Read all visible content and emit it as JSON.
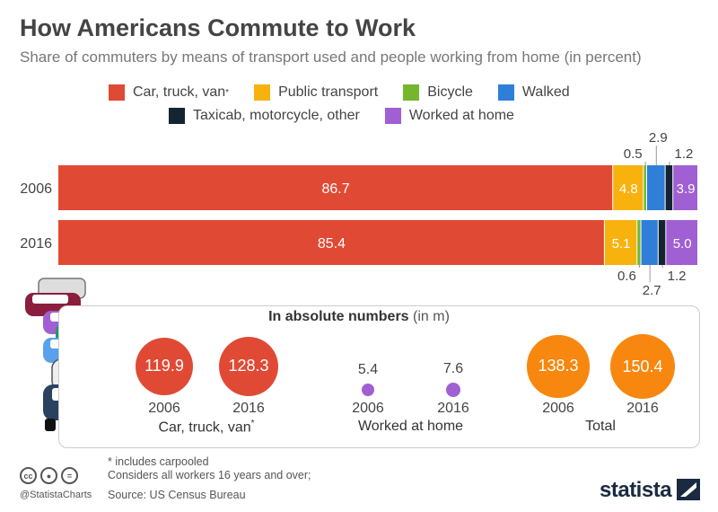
{
  "title": "How Americans Commute to Work",
  "subtitle": "Share of commuters by means of transport used and people working from home (in percent)",
  "legend": [
    {
      "label": "Car, truck, van",
      "sup": "*",
      "color": "#e04a35"
    },
    {
      "label": "Public transport",
      "sup": "",
      "color": "#f7b20e"
    },
    {
      "label": "Bicycle",
      "sup": "",
      "color": "#74b72e"
    },
    {
      "label": "Walked",
      "sup": "",
      "color": "#2f7fd8"
    },
    {
      "label": "Taxicab, motorcycle, other",
      "sup": "",
      "color": "#142433"
    },
    {
      "label": "Worked at home",
      "sup": "",
      "color": "#a05fd2"
    }
  ],
  "chart_data": [
    {
      "type": "bar",
      "orientation": "horizontal",
      "stacked": true,
      "title": "How Americans Commute to Work",
      "categories": [
        "2006",
        "2016"
      ],
      "series": [
        {
          "name": "Car, truck, van*",
          "values": [
            86.7,
            85.4
          ],
          "color": "#e04a35"
        },
        {
          "name": "Public transport",
          "values": [
            4.8,
            5.1
          ],
          "color": "#f7b20e"
        },
        {
          "name": "Bicycle",
          "values": [
            0.5,
            0.6
          ],
          "color": "#74b72e"
        },
        {
          "name": "Walked",
          "values": [
            2.9,
            2.7
          ],
          "color": "#2f7fd8"
        },
        {
          "name": "Taxicab, motorcycle, other",
          "values": [
            1.2,
            1.2
          ],
          "color": "#142433"
        },
        {
          "name": "Worked at home",
          "values": [
            3.9,
            5.0
          ],
          "color": "#a05fd2"
        }
      ],
      "xlim": [
        0,
        100
      ],
      "grid": false,
      "legend": "top"
    },
    {
      "type": "bubble",
      "title": "In absolute numbers",
      "unit": "(in m)",
      "groups": [
        {
          "label": "Car, truck, van",
          "sup": "*",
          "color": "#e04a35",
          "points": [
            {
              "year": "2006",
              "value": 119.9
            },
            {
              "year": "2016",
              "value": 128.3
            }
          ]
        },
        {
          "label": "Worked at home",
          "sup": "",
          "color": "#a05fd2",
          "points": [
            {
              "year": "2006",
              "value": 5.4
            },
            {
              "year": "2016",
              "value": 7.6
            }
          ]
        },
        {
          "label": "Total",
          "sup": "",
          "color": "#f7870e",
          "points": [
            {
              "year": "2006",
              "value": 138.3
            },
            {
              "year": "2016",
              "value": 150.4
            }
          ]
        }
      ]
    }
  ],
  "footnotes": {
    "line1": "* includes carpooled",
    "line2": "Considers all workers 16 years and over;",
    "line3": "Source: US Census Bureau"
  },
  "footer": {
    "handle": "@StatistaCharts",
    "brand": "statista",
    "cc_icons": [
      "cc-icon",
      "by-icon",
      "nd-icon"
    ]
  }
}
